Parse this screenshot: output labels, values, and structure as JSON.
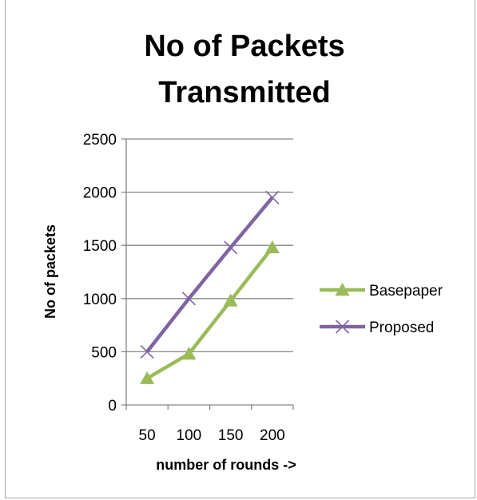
{
  "chart_data": {
    "type": "line",
    "title_lines": [
      "No of Packets",
      "Transmitted"
    ],
    "xlabel": "number of rounds ->",
    "ylabel": "No of packets",
    "categories": [
      "50",
      "100",
      "150",
      "200"
    ],
    "y_ticks": [
      "0",
      "500",
      "1000",
      "1500",
      "2000",
      "2500"
    ],
    "ylim": [
      0,
      2500
    ],
    "grid": "horizontal",
    "legend_position": "right",
    "series": [
      {
        "name": "Basepaper",
        "values": [
          250,
          480,
          980,
          1480
        ],
        "color": "#9bbb59",
        "marker": "triangle"
      },
      {
        "name": "Proposed",
        "values": [
          500,
          1000,
          1480,
          1950
        ],
        "color": "#8064a2",
        "marker": "x"
      }
    ]
  }
}
